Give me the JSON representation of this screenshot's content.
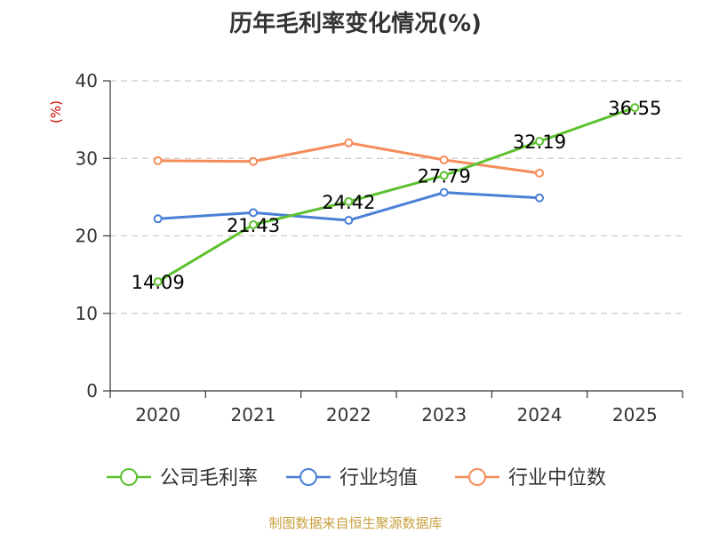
{
  "chart_data": {
    "type": "line",
    "title": "历年毛利率变化情况(%)",
    "ylabel": "(%)",
    "xlabel": "",
    "categories": [
      "2020",
      "2021",
      "2022",
      "2023",
      "2024",
      "2025"
    ],
    "ylim": [
      0,
      40
    ],
    "yticks": [
      0,
      10,
      20,
      30,
      40
    ],
    "grid": true,
    "legend_position": "bottom",
    "series": [
      {
        "name": "公司毛利率",
        "color": "#5dc12f",
        "values": [
          14.09,
          21.43,
          24.42,
          27.79,
          32.19,
          36.55
        ],
        "labels": [
          "14.09",
          "21.43",
          "24.42",
          "27.79",
          "32.19",
          "36.55"
        ]
      },
      {
        "name": "行业均值",
        "color": "#4a7fd6",
        "values": [
          22.2,
          23.0,
          22.0,
          25.6,
          24.9,
          null
        ]
      },
      {
        "name": "行业中位数",
        "color": "#f58c59",
        "values": [
          29.7,
          29.6,
          32.0,
          29.8,
          28.1,
          null
        ]
      }
    ]
  },
  "footer": {
    "source": "制图数据来自恒生聚源数据库"
  },
  "colors": {
    "unit_label": "#cc0000",
    "axis": "#333333",
    "grid": "#cccccc"
  }
}
